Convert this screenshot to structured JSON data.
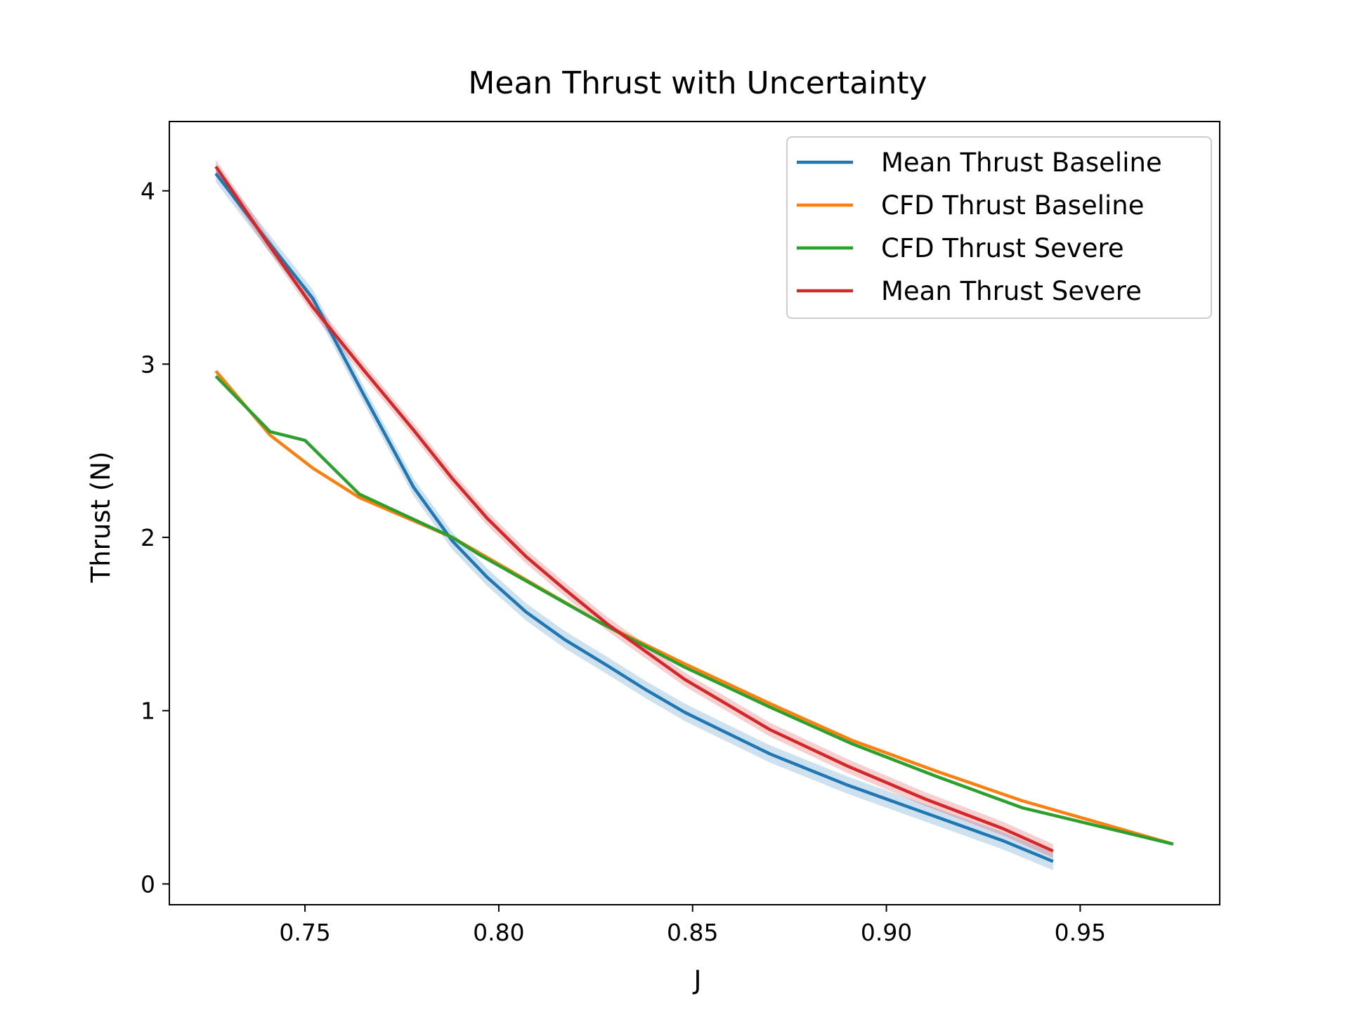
{
  "chart_data": {
    "type": "line",
    "title": "Mean Thrust with Uncertainty",
    "xlabel": "J",
    "ylabel": "Thrust (N)",
    "xlim": [
      0.715,
      0.986
    ],
    "ylim": [
      -0.12,
      4.4
    ],
    "xticks": [
      0.75,
      0.8,
      0.85,
      0.9,
      0.95
    ],
    "xtick_labels": [
      "0.75",
      "0.80",
      "0.85",
      "0.90",
      "0.95"
    ],
    "yticks": [
      0,
      1,
      2,
      3,
      4
    ],
    "ytick_labels": [
      "0",
      "1",
      "2",
      "3",
      "4"
    ],
    "grid": false,
    "legend_position": "top-right",
    "series": [
      {
        "name": "Mean Thrust Baseline",
        "color": "#1f77b4",
        "uncertainty_band": true,
        "band_halfwidth": 0.05,
        "x": [
          0.727,
          0.74,
          0.752,
          0.765,
          0.778,
          0.788,
          0.797,
          0.807,
          0.817,
          0.828,
          0.838,
          0.848,
          0.87,
          0.89,
          0.91,
          0.93,
          0.943
        ],
        "y": [
          4.1,
          3.72,
          3.38,
          2.83,
          2.29,
          1.98,
          1.77,
          1.57,
          1.41,
          1.26,
          1.12,
          0.99,
          0.75,
          0.57,
          0.41,
          0.25,
          0.13
        ]
      },
      {
        "name": "CFD Thrust Baseline",
        "color": "#ff7f0e",
        "uncertainty_band": false,
        "x": [
          0.727,
          0.741,
          0.752,
          0.764,
          0.788,
          0.795,
          0.826,
          0.848,
          0.87,
          0.891,
          0.913,
          0.935,
          0.974
        ],
        "y": [
          2.96,
          2.59,
          2.4,
          2.23,
          2.0,
          1.91,
          1.51,
          1.27,
          1.04,
          0.83,
          0.65,
          0.48,
          0.23
        ]
      },
      {
        "name": "CFD Thrust Severe",
        "color": "#2ca02c",
        "uncertainty_band": false,
        "x": [
          0.727,
          0.741,
          0.75,
          0.764,
          0.788,
          0.795,
          0.826,
          0.848,
          0.87,
          0.891,
          0.913,
          0.935,
          0.974
        ],
        "y": [
          2.93,
          2.61,
          2.56,
          2.25,
          2.0,
          1.9,
          1.51,
          1.25,
          1.02,
          0.81,
          0.62,
          0.44,
          0.23
        ]
      },
      {
        "name": "Mean Thrust Severe",
        "color": "#d62728",
        "uncertainty_band": true,
        "band_halfwidth": 0.04,
        "x": [
          0.727,
          0.74,
          0.752,
          0.765,
          0.778,
          0.788,
          0.797,
          0.807,
          0.817,
          0.828,
          0.838,
          0.848,
          0.87,
          0.89,
          0.91,
          0.93,
          0.943
        ],
        "y": [
          4.14,
          3.71,
          3.33,
          2.97,
          2.62,
          2.34,
          2.11,
          1.89,
          1.7,
          1.5,
          1.34,
          1.18,
          0.89,
          0.68,
          0.49,
          0.32,
          0.19
        ]
      }
    ]
  }
}
